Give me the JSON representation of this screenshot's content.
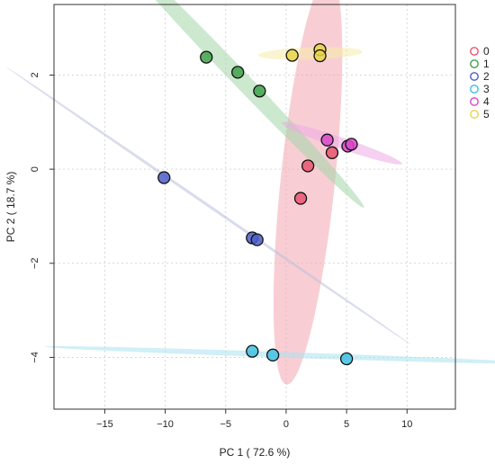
{
  "chart_data": {
    "type": "scatter",
    "xlabel": "PC 1 ( 72.6 %)",
    "ylabel": "PC 2 ( 18.7 %)",
    "xlim": [
      -19.2,
      14
    ],
    "ylim": [
      -5.1,
      3.5
    ],
    "xticks": [
      -15,
      -10,
      -5,
      0,
      5,
      10
    ],
    "yticks": [
      -4,
      -2,
      0,
      2
    ],
    "xtick_labels": [
      "−15",
      "−10",
      "−5",
      "0",
      "5",
      "10"
    ],
    "ytick_labels": [
      "−4",
      "−2",
      "0",
      "2"
    ],
    "grid": true,
    "legend_position": "right",
    "series": [
      {
        "name": "0",
        "color": "#e8556f",
        "fill": "#f2a5b0",
        "points": [
          [
            1.8,
            0.07
          ],
          [
            3.8,
            0.35
          ],
          [
            1.2,
            -0.62
          ]
        ],
        "ellipse": {
          "cx": 1.8,
          "cy": -0.22,
          "major_half": 4.7,
          "minor_half": 1.3,
          "angle_deg": 68
        }
      },
      {
        "name": "1",
        "color": "#3fa04a",
        "fill": "#a3d6a8",
        "points": [
          [
            -6.6,
            2.38
          ],
          [
            -4.0,
            2.06
          ],
          [
            -2.2,
            1.66
          ]
        ],
        "ellipse": {
          "cx": -4.2,
          "cy": 2.03,
          "major_half": 11.0,
          "minor_half": 0.18,
          "angle_deg": -15
        }
      },
      {
        "name": "2",
        "color": "#4c5fc7",
        "fill": "#b9c0dd",
        "points": [
          [
            -10.1,
            -0.18
          ],
          [
            -2.8,
            -1.46
          ],
          [
            -2.4,
            -1.5
          ]
        ],
        "ellipse": {
          "cx": -6.4,
          "cy": -0.78,
          "major_half": 17.0,
          "minor_half": 0.03,
          "angle_deg": -10
        }
      },
      {
        "name": "3",
        "color": "#3fbfe0",
        "fill": "#a9e2f0",
        "points": [
          [
            -2.8,
            -3.87
          ],
          [
            -1.1,
            -3.95
          ],
          [
            5.0,
            -4.03
          ]
        ],
        "ellipse": {
          "cx": 0.4,
          "cy": -3.95,
          "major_half": 20.4,
          "minor_half": 0.06,
          "angle_deg": -0.5
        }
      },
      {
        "name": "4",
        "color": "#d848c8",
        "fill": "#ecaae4",
        "points": [
          [
            3.4,
            0.62
          ],
          [
            5.1,
            0.49
          ],
          [
            5.4,
            0.53
          ]
        ],
        "ellipse": {
          "cx": 4.6,
          "cy": 0.55,
          "major_half": 5.0,
          "minor_half": 0.12,
          "angle_deg": -5
        }
      },
      {
        "name": "5",
        "color": "#e8d44a",
        "fill": "#f6eba8",
        "points": [
          [
            0.5,
            2.42
          ],
          [
            2.8,
            2.54
          ],
          [
            2.8,
            2.41
          ]
        ],
        "ellipse": {
          "cx": 2.0,
          "cy": 2.46,
          "major_half": 4.3,
          "minor_half": 0.13,
          "angle_deg": 0.5
        }
      }
    ]
  }
}
